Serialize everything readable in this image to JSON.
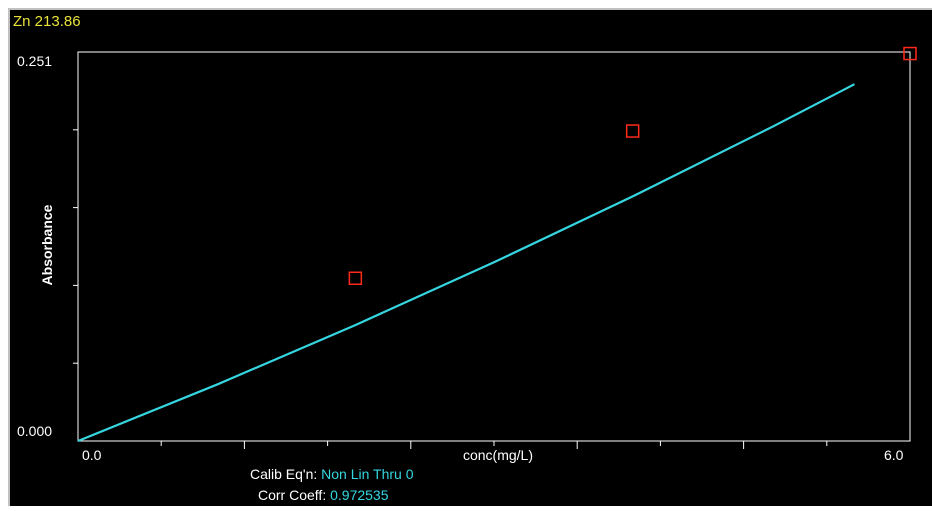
{
  "window": {
    "element_label": "Zn 213.86"
  },
  "chart_data": {
    "type": "scatter",
    "title": "Zn 213.86",
    "xlabel": "conc(mg/L)",
    "ylabel": "Absorbance",
    "xlim": [
      0.0,
      6.0
    ],
    "ylim": [
      0.0,
      0.251
    ],
    "x_tick_labels": [
      "0.0",
      "6.0"
    ],
    "y_tick_labels": [
      "0.000",
      "0.251"
    ],
    "grid": false,
    "series": [
      {
        "kind": "points",
        "marker": "square",
        "color": "#ff2a1a",
        "x": [
          2.0,
          4.0,
          6.0
        ],
        "y": [
          0.105,
          0.2,
          0.25
        ]
      },
      {
        "kind": "curve",
        "color": "#35d6e0",
        "x": [
          0,
          1,
          2,
          3,
          4,
          5,
          5.6
        ],
        "y": [
          0,
          0.0363,
          0.0748,
          0.1153,
          0.1578,
          0.2024,
          0.2302
        ]
      }
    ],
    "annotations": {
      "calib_key": "Calib Eq'n: ",
      "calib_value": "Non Lin Thru 0",
      "corr_key": "Corr Coeff: ",
      "corr_value": "0.972535"
    }
  }
}
